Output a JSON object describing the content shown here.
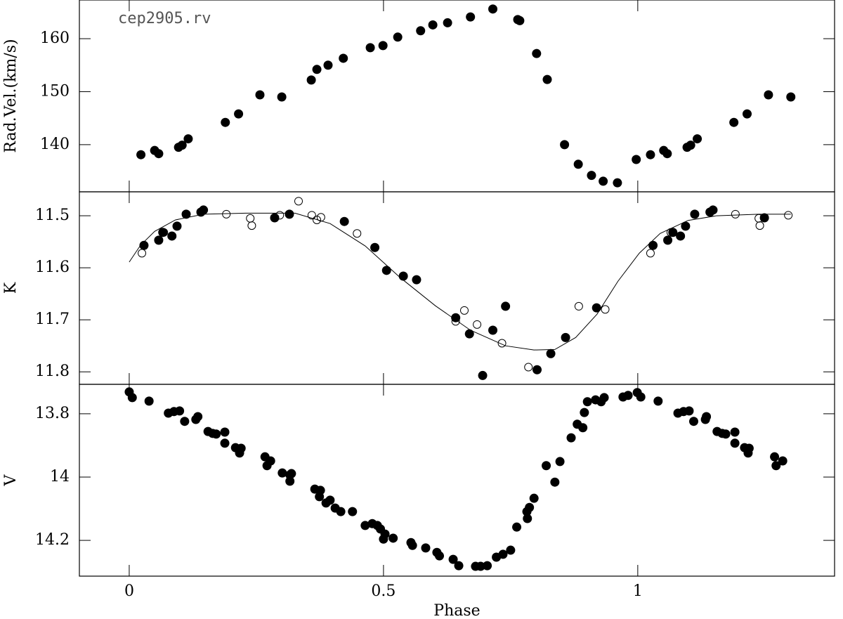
{
  "chart_data": [
    {
      "type": "scatter",
      "ylabel": "Rad.Vel.(km/s)",
      "annotation": "cep2905.rv",
      "xlim": [
        -0.098,
        1.387
      ],
      "ylim": [
        131.1,
        167.3
      ],
      "yticks": [
        140,
        150,
        160
      ],
      "series": [
        {
          "style": "filled",
          "color": "#000000",
          "x": [
            0.023,
            0.05,
            0.058,
            0.097,
            0.104,
            0.116,
            0.189,
            0.215,
            0.257,
            0.3,
            0.358,
            0.369,
            0.391,
            0.421,
            0.474,
            0.499,
            0.528,
            0.573,
            0.597,
            0.626,
            0.671,
            0.715,
            0.764,
            0.768,
            0.801,
            0.822,
            0.856,
            0.883,
            0.909,
            0.932,
            0.96,
            0.997,
            1.025,
            1.051,
            1.058,
            1.097,
            1.104,
            1.117,
            1.189,
            1.215,
            1.257,
            1.301
          ],
          "values": [
            138.1,
            138.9,
            138.3,
            139.5,
            139.9,
            141.1,
            144.2,
            145.8,
            149.4,
            149.0,
            152.2,
            154.2,
            155.0,
            156.3,
            158.3,
            158.7,
            160.3,
            161.5,
            162.6,
            163.0,
            164.1,
            165.6,
            163.6,
            163.4,
            157.2,
            152.3,
            140.0,
            136.3,
            134.2,
            133.1,
            132.8,
            137.2,
            138.1,
            138.9,
            138.3,
            139.5,
            139.9,
            141.1,
            144.2,
            145.8,
            149.4,
            149.0
          ]
        }
      ]
    },
    {
      "type": "scatter",
      "ylabel": "K",
      "xlim": [
        -0.098,
        1.387
      ],
      "ylim": [
        11.824,
        11.454
      ],
      "yticks": [
        11.5,
        11.6,
        11.7,
        11.8
      ],
      "series": [
        {
          "style": "filled",
          "color": "#000000",
          "x": [
            0.029,
            0.058,
            0.066,
            0.084,
            0.094,
            0.112,
            0.141,
            0.146,
            0.286,
            0.315,
            0.423,
            0.483,
            0.506,
            0.539,
            0.565,
            0.642,
            0.669,
            0.695,
            0.715,
            0.74,
            0.802,
            0.829,
            0.858,
            0.919,
            1.03,
            1.059,
            1.069,
            1.084,
            1.094,
            1.112,
            1.142,
            1.148,
            1.249
          ],
          "values": [
            11.557,
            11.547,
            11.532,
            11.539,
            11.52,
            11.497,
            11.493,
            11.489,
            11.504,
            11.497,
            11.511,
            11.561,
            11.605,
            11.616,
            11.623,
            11.696,
            11.727,
            11.807,
            11.72,
            11.674,
            11.796,
            11.765,
            11.734,
            11.677,
            11.557,
            11.547,
            11.532,
            11.539,
            11.52,
            11.497,
            11.493,
            11.489,
            11.504
          ]
        },
        {
          "style": "open",
          "color": "#000000",
          "x": [
            0.025,
            0.068,
            0.191,
            0.238,
            0.241,
            0.296,
            0.333,
            0.359,
            0.369,
            0.377,
            0.448,
            0.642,
            0.659,
            0.684,
            0.733,
            0.785,
            0.884,
            0.936,
            1.025,
            1.065,
            1.192,
            1.238,
            1.24,
            1.296
          ],
          "values": [
            11.572,
            11.532,
            11.497,
            11.505,
            11.519,
            11.499,
            11.472,
            11.499,
            11.508,
            11.503,
            11.534,
            11.703,
            11.682,
            11.709,
            11.745,
            11.791,
            11.674,
            11.68,
            11.572,
            11.532,
            11.497,
            11.505,
            11.519,
            11.499
          ]
        },
        {
          "style": "line",
          "color": "#000000",
          "x": [
            0,
            0.022,
            0.05,
            0.091,
            0.146,
            0.229,
            0.326,
            0.395,
            0.464,
            0.533,
            0.602,
            0.671,
            0.74,
            0.796,
            0.837,
            0.878,
            0.92,
            0.961,
            1.003,
            1.044,
            1.099,
            1.155,
            1.238,
            1.301
          ],
          "values": [
            11.589,
            11.557,
            11.53,
            11.508,
            11.497,
            11.495,
            11.495,
            11.515,
            11.558,
            11.619,
            11.673,
            11.72,
            11.75,
            11.758,
            11.757,
            11.734,
            11.689,
            11.626,
            11.572,
            11.534,
            11.509,
            11.5,
            11.497,
            11.497
          ]
        }
      ]
    },
    {
      "type": "scatter",
      "ylabel": "V",
      "xlabel": "Phase",
      "xlim": [
        -0.098,
        1.387
      ],
      "xticks": [
        0,
        0.5,
        1
      ],
      "ylim": [
        14.313,
        13.707
      ],
      "yticks": [
        13.8,
        14,
        14.2
      ],
      "series": [
        {
          "style": "filled",
          "color": "#000000",
          "x": [
            0,
            0.006,
            0.039,
            0.077,
            0.088,
            0.099,
            0.109,
            0.131,
            0.135,
            0.155,
            0.164,
            0.171,
            0.188,
            0.188,
            0.209,
            0.217,
            0.22,
            0.267,
            0.271,
            0.278,
            0.301,
            0.316,
            0.316,
            0.319,
            0.365,
            0.374,
            0.376,
            0.387,
            0.395,
            0.405,
            0.416,
            0.439,
            0.464,
            0.478,
            0.488,
            0.494,
            0.5,
            0.503,
            0.519,
            0.554,
            0.557,
            0.583,
            0.605,
            0.61,
            0.637,
            0.648,
            0.681,
            0.691,
            0.704,
            0.722,
            0.735,
            0.75,
            0.762,
            0.782,
            0.783,
            0.787,
            0.796,
            0.82,
            0.837,
            0.847,
            0.869,
            0.881,
            0.892,
            0.895,
            0.901,
            0.917,
            0.928,
            0.934,
            0.971,
            0.981,
            0.999,
            1.006,
            1.04,
            1.079,
            1.09,
            1.101,
            1.11,
            1.133,
            1.135,
            1.156,
            1.166,
            1.173,
            1.191,
            1.191,
            1.21,
            1.217,
            1.219,
            1.269,
            1.272,
            1.285
          ],
          "values": [
            13.731,
            13.749,
            13.76,
            13.798,
            13.793,
            13.791,
            13.824,
            13.818,
            13.809,
            13.856,
            13.862,
            13.864,
            13.858,
            13.893,
            13.907,
            13.924,
            13.909,
            13.936,
            13.964,
            13.949,
            13.987,
            13.993,
            14.013,
            13.989,
            14.038,
            14.062,
            14.042,
            14.082,
            14.073,
            14.098,
            14.109,
            14.109,
            14.153,
            14.147,
            14.153,
            14.164,
            14.196,
            14.18,
            14.193,
            14.207,
            14.216,
            14.224,
            14.238,
            14.249,
            14.26,
            14.28,
            14.282,
            14.282,
            14.28,
            14.253,
            14.244,
            14.231,
            14.158,
            14.109,
            14.131,
            14.096,
            14.067,
            13.964,
            14.016,
            13.951,
            13.876,
            13.833,
            13.844,
            13.796,
            13.762,
            13.756,
            13.762,
            13.749,
            13.747,
            13.742,
            13.733,
            13.747,
            13.76,
            13.798,
            13.793,
            13.791,
            13.824,
            13.818,
            13.809,
            13.856,
            13.862,
            13.864,
            13.858,
            13.893,
            13.907,
            13.924,
            13.909,
            13.936,
            13.964,
            13.949
          ]
        }
      ]
    }
  ]
}
